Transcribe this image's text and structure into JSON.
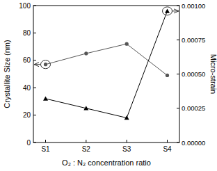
{
  "chart_data": {
    "type": "line",
    "x_label": "O₂ : N₂ concentration ratio",
    "y_label": "Crystallite Size (nm)",
    "y2_label": "Micro-strain",
    "categories": [
      "S1",
      "S2",
      "S3",
      "S4"
    ],
    "ylim": [
      0,
      100
    ],
    "yticks": [
      0,
      20,
      40,
      60,
      80,
      100
    ],
    "y2lim": [
      0,
      0.001
    ],
    "y2ticks": [
      {
        "value": 0,
        "label": "0.00000"
      },
      {
        "value": 0.00025,
        "label": "0.00025"
      },
      {
        "value": 0.0005,
        "label": "0.00050"
      },
      {
        "value": 0.00075,
        "label": "0.00075"
      },
      {
        "value": 0.001,
        "label": "0.00100"
      }
    ],
    "series": [
      {
        "color": "#555555",
        "marker": "circle",
        "values": [
          57,
          65,
          72,
          49
        ]
      },
      {
        "color": "#000000",
        "marker": "triangle",
        "axis": "y2",
        "values": [
          0.00032,
          0.00025,
          0.00018,
          0.00096
        ]
      }
    ]
  }
}
